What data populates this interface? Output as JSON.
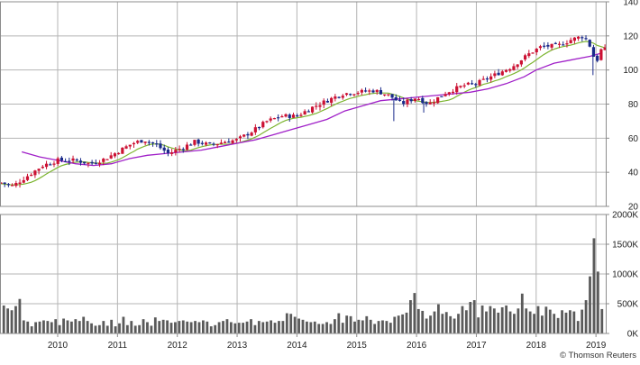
{
  "chart_data": [
    {
      "type": "candlestick",
      "title": "",
      "xlabel": "",
      "ylabel": "",
      "years": [
        "2010",
        "2011",
        "2012",
        "2013",
        "2014",
        "2015",
        "2016",
        "2017",
        "2018",
        "2019"
      ],
      "y_ticks": [
        "20",
        "40",
        "60",
        "80",
        "100",
        "120",
        "140"
      ],
      "ylim": [
        20,
        140
      ],
      "grid": true,
      "t_start": 2009.05,
      "t_end": 2019.15,
      "close_path": [
        [
          2009.05,
          34
        ],
        [
          2009.25,
          32
        ],
        [
          2009.5,
          38
        ],
        [
          2009.75,
          44
        ],
        [
          2010.0,
          47
        ],
        [
          2010.3,
          47
        ],
        [
          2010.55,
          45
        ],
        [
          2010.8,
          48
        ],
        [
          2011.0,
          52
        ],
        [
          2011.25,
          57
        ],
        [
          2011.45,
          59
        ],
        [
          2011.65,
          56
        ],
        [
          2011.85,
          51
        ],
        [
          2012.05,
          54
        ],
        [
          2012.3,
          58
        ],
        [
          2012.55,
          56
        ],
        [
          2012.8,
          58
        ],
        [
          2013.0,
          59
        ],
        [
          2013.25,
          64
        ],
        [
          2013.5,
          70
        ],
        [
          2013.75,
          73
        ],
        [
          2014.0,
          73
        ],
        [
          2014.25,
          78
        ],
        [
          2014.5,
          82
        ],
        [
          2014.75,
          86
        ],
        [
          2015.0,
          87
        ],
        [
          2015.3,
          88
        ],
        [
          2015.55,
          85
        ],
        [
          2015.75,
          80
        ],
        [
          2016.0,
          84
        ],
        [
          2016.2,
          80
        ],
        [
          2016.5,
          87
        ],
        [
          2016.8,
          91
        ],
        [
          2017.0,
          92
        ],
        [
          2017.3,
          97
        ],
        [
          2017.6,
          102
        ],
        [
          2017.9,
          110
        ],
        [
          2018.1,
          114
        ],
        [
          2018.35,
          114
        ],
        [
          2018.6,
          118
        ],
        [
          2018.8,
          120
        ],
        [
          2018.9,
          114
        ],
        [
          2019.0,
          104
        ],
        [
          2019.1,
          113
        ],
        [
          2019.15,
          112
        ]
      ],
      "sma_long": [
        [
          2009.4,
          52
        ],
        [
          2009.7,
          49
        ],
        [
          2010.0,
          47
        ],
        [
          2010.3,
          45
        ],
        [
          2010.6,
          44
        ],
        [
          2010.9,
          45
        ],
        [
          2011.2,
          48
        ],
        [
          2011.5,
          50
        ],
        [
          2011.8,
          51
        ],
        [
          2012.1,
          52
        ],
        [
          2012.4,
          53
        ],
        [
          2012.7,
          55
        ],
        [
          2013.0,
          57
        ],
        [
          2013.3,
          59
        ],
        [
          2013.6,
          62
        ],
        [
          2013.9,
          65
        ],
        [
          2014.2,
          68
        ],
        [
          2014.5,
          71
        ],
        [
          2014.8,
          76
        ],
        [
          2015.1,
          79
        ],
        [
          2015.4,
          82
        ],
        [
          2015.7,
          83
        ],
        [
          2016.0,
          84
        ],
        [
          2016.3,
          85
        ],
        [
          2016.6,
          86
        ],
        [
          2016.9,
          87
        ],
        [
          2017.2,
          89
        ],
        [
          2017.5,
          92
        ],
        [
          2017.8,
          96
        ],
        [
          2018.0,
          100
        ],
        [
          2018.3,
          104
        ],
        [
          2018.6,
          106
        ],
        [
          2018.9,
          108
        ],
        [
          2019.1,
          110
        ]
      ],
      "series": [
        {
          "role": "price-candles",
          "up_color": "#cc1133",
          "down_color": "#1a2a8a"
        },
        {
          "role": "short-moving-average",
          "color": "#7db531"
        },
        {
          "role": "long-moving-average",
          "color": "#a020c8"
        }
      ]
    },
    {
      "type": "bar",
      "title": "",
      "y_ticks": [
        "0K",
        "500K",
        "1000K",
        "1500K",
        "2000K"
      ],
      "ylim": [
        0,
        2000
      ],
      "grid": true,
      "color": "#5a5a5a",
      "values": [
        470,
        420,
        390,
        460,
        580,
        220,
        200,
        120,
        190,
        200,
        220,
        210,
        190,
        240,
        140,
        250,
        220,
        200,
        240,
        210,
        280,
        210,
        170,
        130,
        140,
        210,
        130,
        230,
        120,
        170,
        280,
        140,
        210,
        130,
        140,
        240,
        190,
        130,
        270,
        210,
        230,
        220,
        180,
        190,
        210,
        220,
        200,
        190,
        210,
        190,
        220,
        200,
        120,
        140,
        190,
        210,
        240,
        190,
        170,
        180,
        180,
        200,
        240,
        140,
        210,
        190,
        200,
        220,
        180,
        210,
        210,
        340,
        330,
        280,
        250,
        230,
        200,
        190,
        200,
        160,
        160,
        190,
        160,
        240,
        340,
        180,
        300,
        290,
        200,
        230,
        220,
        290,
        230,
        160,
        210,
        220,
        210,
        180,
        280,
        300,
        320,
        350,
        560,
        680,
        410,
        380,
        250,
        300,
        370,
        490,
        330,
        360,
        290,
        250,
        330,
        460,
        390,
        530,
        560,
        270,
        470,
        370,
        460,
        420,
        350,
        440,
        470,
        370,
        330,
        420,
        670,
        420,
        370,
        330,
        460,
        300,
        450,
        400,
        330,
        260,
        390,
        350,
        390,
        370,
        210,
        400,
        560,
        960,
        1600,
        1040,
        410
      ]
    }
  ],
  "credit": "© Thomson Reuters",
  "colors": {
    "grid": "#b4b4b4",
    "frame": "#8c8c8c",
    "volume_bar": "#5a5a5a"
  }
}
